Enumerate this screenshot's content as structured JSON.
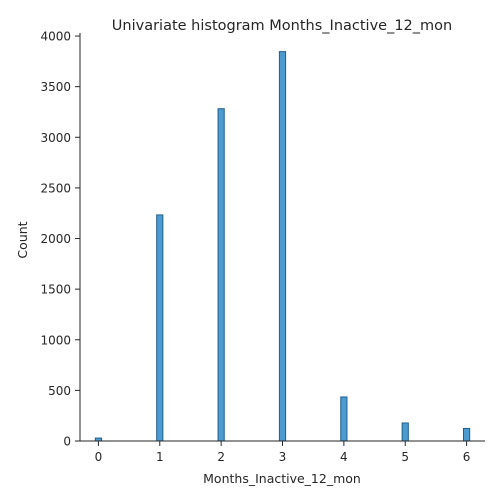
{
  "chart_data": {
    "type": "bar",
    "title": "Univariate histogram Months_Inactive_12_mon",
    "xlabel": "Months_Inactive_12_mon",
    "ylabel": "Count",
    "categories": [
      "0",
      "1",
      "2",
      "3",
      "4",
      "5",
      "6"
    ],
    "x": [
      0,
      1,
      2,
      3,
      4,
      5,
      6
    ],
    "values": [
      29,
      2233,
      3282,
      3846,
      435,
      178,
      124
    ],
    "xlim": [
      -0.3,
      6.3
    ],
    "ylim": [
      0,
      4030
    ],
    "xticks": [
      0,
      1,
      2,
      3,
      4,
      5,
      6
    ],
    "yticks": [
      0,
      500,
      1000,
      1500,
      2000,
      2500,
      3000,
      3500,
      4000
    ],
    "bar_color": "#4c9bd0",
    "edge_color": "#1f5f8b",
    "grid": false,
    "legend": "none"
  }
}
